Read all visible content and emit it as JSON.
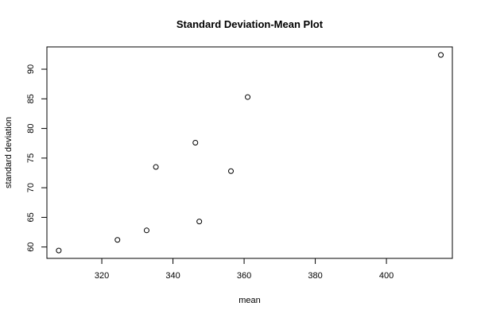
{
  "chart_data": {
    "type": "scatter",
    "title": "Standard Deviation-Mean Plot",
    "xlabel": "mean",
    "ylabel": "standard deviation",
    "xlim": [
      304.57,
      418.53
    ],
    "ylim": [
      58.08,
      93.76
    ],
    "xticks": [
      320,
      340,
      360,
      380,
      400
    ],
    "yticks": [
      60,
      65,
      70,
      75,
      80,
      85,
      90
    ],
    "grid": false,
    "points": [
      {
        "x": 307.9,
        "y": 59.4
      },
      {
        "x": 324.4,
        "y": 61.2
      },
      {
        "x": 332.6,
        "y": 62.8
      },
      {
        "x": 335.2,
        "y": 73.5
      },
      {
        "x": 346.3,
        "y": 77.6
      },
      {
        "x": 347.4,
        "y": 64.3
      },
      {
        "x": 356.3,
        "y": 72.8
      },
      {
        "x": 361.0,
        "y": 85.3
      },
      {
        "x": 415.3,
        "y": 92.4
      }
    ]
  }
}
